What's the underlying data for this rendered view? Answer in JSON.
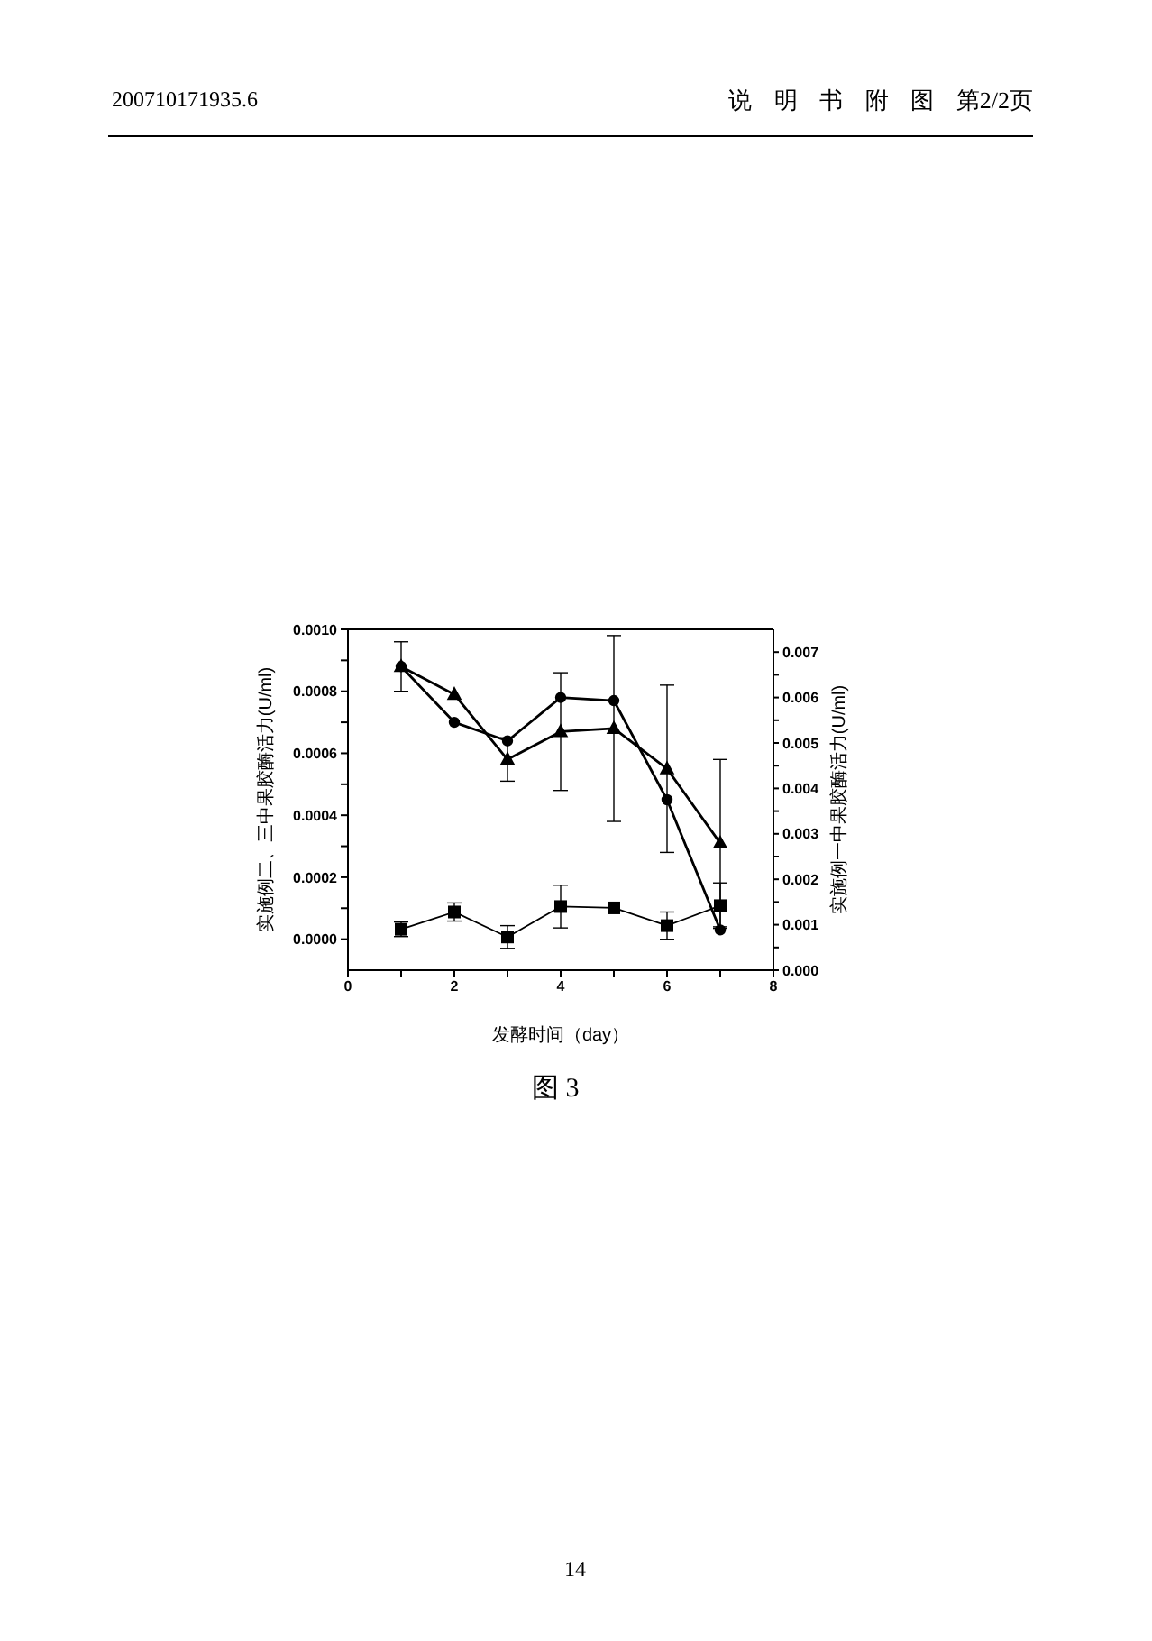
{
  "chart_data": {
    "type": "line",
    "xlabel": "发酵时间（day）",
    "ylabel": "实施例二、三中果胶酶活力(U/ml)",
    "y2label": "实施例一中果胶酶活力(U/ml)",
    "x": [
      1,
      2,
      3,
      4,
      5,
      6,
      7
    ],
    "xlim": [
      0,
      8
    ],
    "xticks": [
      0,
      {
        "value": 1,
        "label": null
      },
      2,
      {
        "value": 3,
        "label": null
      },
      4,
      {
        "value": 5,
        "label": null
      },
      6,
      {
        "value": 7,
        "label": null
      },
      8
    ],
    "ylim": [
      -0.0001,
      0.001
    ],
    "yticks": [
      {
        "value": 0,
        "label": "0.0000"
      },
      {
        "value": 0.0001,
        "label": null
      },
      {
        "value": 0.0002,
        "label": "0.0002"
      },
      {
        "value": 0.0003,
        "label": null
      },
      {
        "value": 0.0004,
        "label": "0.0004"
      },
      {
        "value": 0.0005,
        "label": null
      },
      {
        "value": 0.0006,
        "label": "0.0006"
      },
      {
        "value": 0.0007,
        "label": null
      },
      {
        "value": 0.0008,
        "label": "0.0008"
      },
      {
        "value": 0.0009,
        "label": null
      },
      {
        "value": 0.001,
        "label": "0.0010"
      }
    ],
    "y2lim": [
      0,
      0.0075
    ],
    "y2ticks": [
      {
        "value": 0,
        "label": "0.000"
      },
      {
        "value": 0.0005,
        "label": null
      },
      {
        "value": 0.001,
        "label": "0.001"
      },
      {
        "value": 0.0015,
        "label": null
      },
      {
        "value": 0.002,
        "label": "0.002"
      },
      {
        "value": 0.0025,
        "label": null
      },
      {
        "value": 0.003,
        "label": "0.003"
      },
      {
        "value": 0.0035,
        "label": null
      },
      {
        "value": 0.004,
        "label": "0.004"
      },
      {
        "value": 0.0045,
        "label": null
      },
      {
        "value": 0.005,
        "label": "0.005"
      },
      {
        "value": 0.0055,
        "label": null
      },
      {
        "value": 0.006,
        "label": "0.006"
      },
      {
        "value": 0.0065,
        "label": null
      },
      {
        "value": 0.007,
        "label": "0.007"
      }
    ],
    "line_style": "solid",
    "series": [
      {
        "color": "#000000",
        "marker": "square",
        "axis": "y2",
        "values": [
          0.0009,
          0.00128,
          0.00073,
          0.0014,
          0.00137,
          0.00098,
          0.00142
        ],
        "errors": [
          0.00016,
          0.0002,
          0.00025,
          0.00047,
          null,
          0.0003,
          0.0005
        ]
      },
      {
        "color": "#000000",
        "marker": "circle",
        "values": [
          0.00088,
          0.0007,
          0.00064,
          0.00078,
          0.00077,
          0.00045,
          3e-05
        ]
      },
      {
        "color": "#000000",
        "marker": "triangle",
        "values": [
          0.00088,
          0.00079,
          0.00058,
          0.00067,
          0.00068,
          0.00055,
          0.00031
        ],
        "errors": [
          8e-05,
          null,
          7e-05,
          0.00019,
          0.0003,
          0.00027,
          0.00027
        ]
      }
    ],
    "annotations": [
      "200710171935.6",
      "说 明 书 附 图 第2/2页",
      "图 3",
      "14"
    ]
  }
}
